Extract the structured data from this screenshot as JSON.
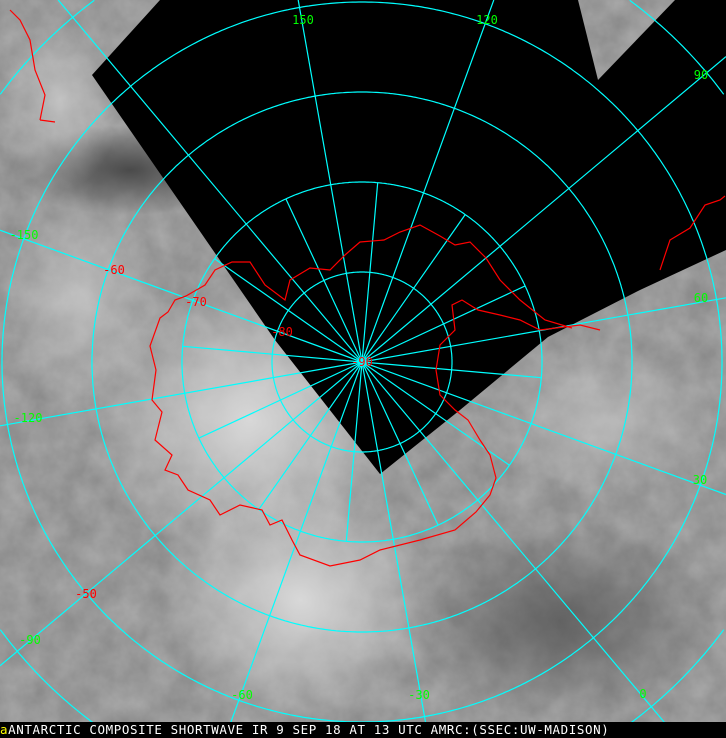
{
  "caption": {
    "marker": "a",
    "text": "ANTARCTIC COMPOSITE SHORTWAVE IR 9 SEP 18 AT 13 UTC AMRC:(SSEC:UW-MADISON)"
  },
  "map": {
    "projection": "south-polar-stereographic",
    "colors": {
      "grid": "#00ffff",
      "coastline": "#ff0000",
      "longitude_labels": "#00ff00",
      "latitude_labels": "#ff0000",
      "no_data": "#000000"
    },
    "latitude_labels": [
      "-90",
      "-80",
      "-70",
      "-60",
      "-50"
    ],
    "longitude_labels": [
      "150",
      "120",
      "90",
      "60",
      "30",
      "0",
      "-30",
      "-60",
      "-90",
      "-120",
      "-150"
    ]
  }
}
